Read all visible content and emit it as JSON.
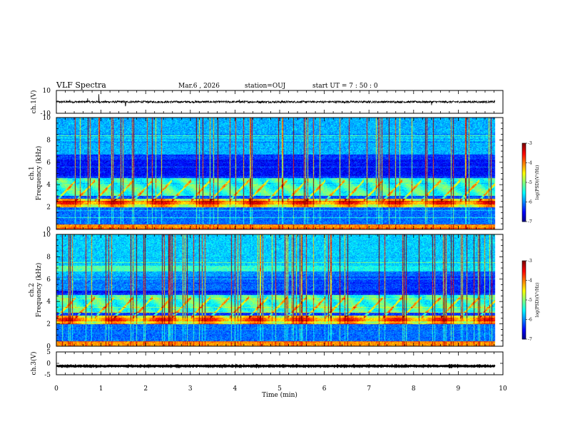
{
  "header": {
    "title": "VLF Spectra",
    "date": "Mar.6 , 2026",
    "station": "station=OUJ",
    "start": "start UT =  7 : 50 : 0"
  },
  "chart_data": [
    {
      "type": "line",
      "name": "ch1-waveform",
      "ylabel": "ch.1(V)",
      "ylim": [
        -10,
        10
      ],
      "yticks": [
        "10",
        "-10"
      ],
      "xlim": [
        0,
        10
      ],
      "offset": 0,
      "noise": 0.9,
      "spikes": [
        [
          0.95,
          6
        ],
        [
          0.7,
          4
        ],
        [
          1.55,
          -3.5
        ],
        [
          0.3,
          2.5
        ],
        [
          4.1,
          2.5
        ],
        [
          8.4,
          -2
        ]
      ]
    },
    {
      "type": "heatmap",
      "name": "ch1-spectrogram",
      "ylabel": "ch.1 Frequency (kHz)",
      "ylabel_lines": [
        "ch.1",
        "Frequency (kHz)"
      ],
      "xlim": [
        0,
        10
      ],
      "ylim": [
        0,
        10
      ],
      "data_xmax": 9.82,
      "yticks": [
        "0",
        "2",
        "4",
        "6",
        "8",
        "10"
      ],
      "colorbar": {
        "label": "log(PSD)(V²/Hz)",
        "range": [
          -7,
          -3
        ],
        "ticks": [
          "-3",
          "-4",
          "-5",
          "-6",
          "-7"
        ]
      }
    },
    {
      "type": "heatmap",
      "name": "ch2-spectrogram",
      "ylabel": "ch.2 Frequency (kHz)",
      "ylabel_lines": [
        "ch.2",
        "Frequency (kHz)"
      ],
      "xlim": [
        0,
        10
      ],
      "ylim": [
        0,
        10
      ],
      "data_xmax": 9.82,
      "yticks": [
        "0",
        "2",
        "4",
        "6",
        "8",
        "10"
      ],
      "colorbar": {
        "label": "log(PSD)(V²/Hz)",
        "range": [
          -7,
          -3
        ],
        "ticks": [
          "-3",
          "-4",
          "-5",
          "-6",
          "-7"
        ]
      }
    },
    {
      "type": "line",
      "name": "ch3-waveform",
      "ylabel": "ch.3(V)",
      "ylim": [
        -5,
        5
      ],
      "yticks": [
        "5",
        "0",
        "-5"
      ],
      "xlim": [
        0,
        10
      ],
      "offset": -1.2,
      "noise": 0.15,
      "spikes": []
    }
  ],
  "xaxis": {
    "label": "Time (min)",
    "ticks": [
      "0",
      "1",
      "2",
      "3",
      "4",
      "5",
      "6",
      "7",
      "8",
      "9",
      "10"
    ]
  }
}
